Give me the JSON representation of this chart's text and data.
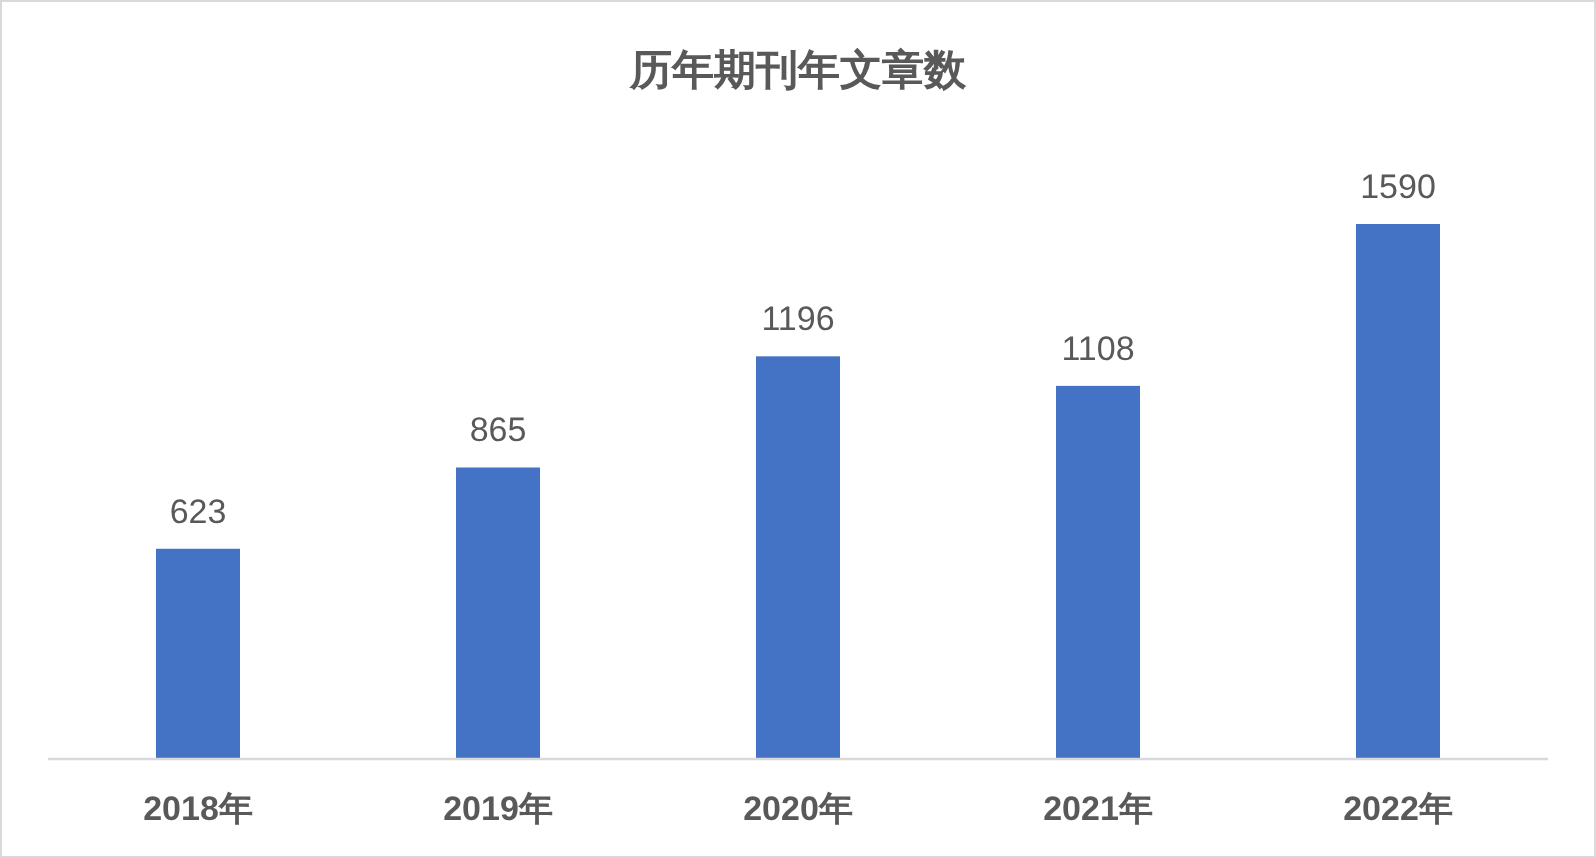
{
  "chart_data": {
    "type": "bar",
    "title": "历年期刊年文章数",
    "categories": [
      "2018年",
      "2019年",
      "2020年",
      "2021年",
      "2022年"
    ],
    "values": [
      623,
      865,
      1196,
      1108,
      1590
    ],
    "color": "#4472c4",
    "data_labels": true
  }
}
